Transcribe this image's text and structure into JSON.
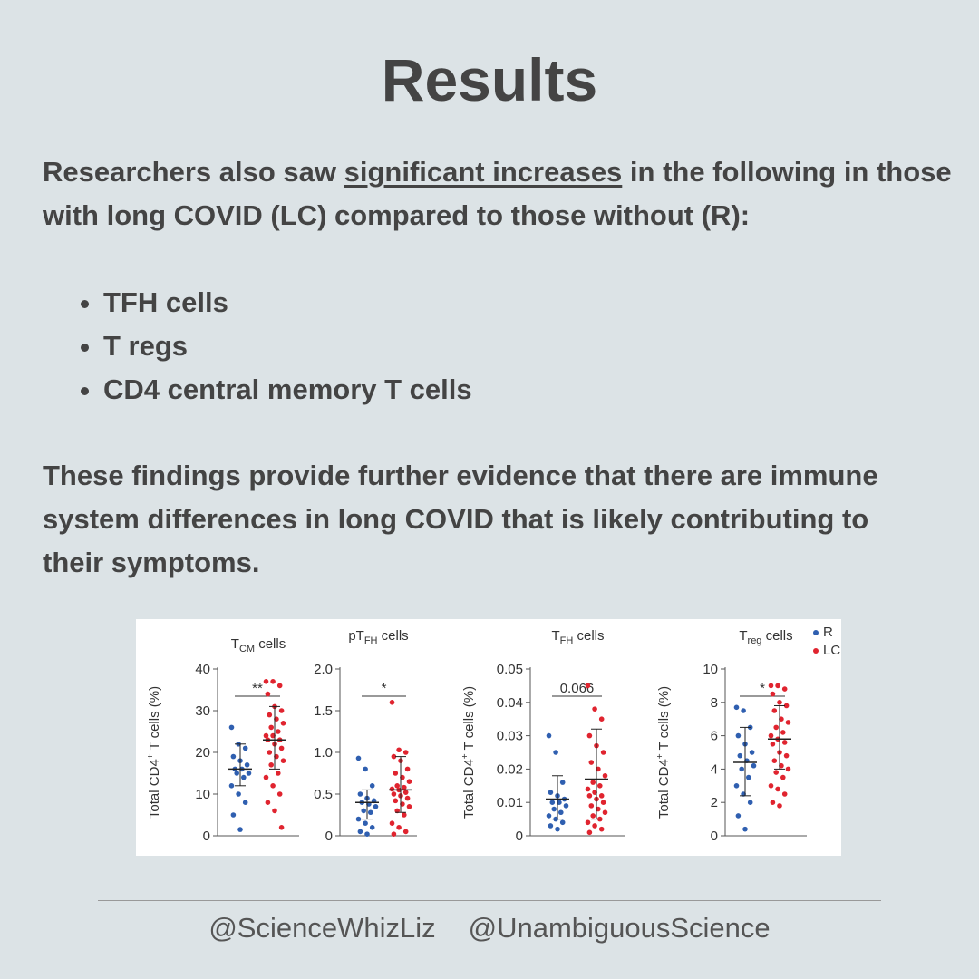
{
  "header": {
    "title": "Results"
  },
  "intro": {
    "before": "Researchers also saw ",
    "underlined": "significant increases",
    "after": " in the following in those with long COVID (LC) compared to those without (R):"
  },
  "bullets": [
    "TFH cells",
    "T regs",
    "CD4 central memory T cells"
  ],
  "conclusion": "These findings provide further evidence that there are immune system differences in long COVID that is likely contributing to their symptoms.",
  "chart_data": [
    {
      "type": "strip",
      "title": {
        "main": "T",
        "sub": "CM",
        "tail": " cells"
      },
      "ylabel": {
        "pre": "Total CD4",
        "sup": "+",
        "post": " T cells (%)"
      },
      "annotation": "**",
      "ylim": [
        0,
        40
      ],
      "yticks": [
        0,
        10,
        20,
        30,
        40
      ],
      "series": [
        {
          "name": "R",
          "color": "#2f5fb0",
          "values": [
            26,
            22,
            21,
            19,
            18,
            17,
            16,
            16,
            15,
            15,
            14,
            12,
            10,
            8,
            5,
            1.5
          ],
          "median": 16,
          "lower": 12,
          "upper": 22
        },
        {
          "name": "LC",
          "color": "#e0242f",
          "values": [
            37,
            37,
            36,
            34,
            31,
            30,
            29,
            28,
            27,
            26,
            25,
            24,
            24,
            23,
            23,
            22,
            21,
            20,
            19,
            18,
            17,
            15,
            14,
            12,
            10,
            8,
            6,
            2
          ],
          "median": 23,
          "lower": 16,
          "upper": 31
        }
      ]
    },
    {
      "type": "strip",
      "title": {
        "main": "pT",
        "sub": "FH",
        "tail": " cells"
      },
      "annotation": "*",
      "ylim": [
        0,
        2
      ],
      "yticks": [
        0,
        0.5,
        {
          "value": 1,
          "label": "1.0"
        },
        1.5,
        {
          "value": 2,
          "label": "2.0"
        }
      ],
      "series": [
        {
          "name": "R",
          "color": "#2f5fb0",
          "values": [
            0.93,
            0.8,
            0.6,
            0.5,
            0.45,
            0.42,
            0.4,
            0.38,
            0.35,
            0.3,
            0.28,
            0.2,
            0.15,
            0.1,
            0.05,
            0.02
          ],
          "median": 0.4,
          "lower": 0.2,
          "upper": 0.55
        },
        {
          "name": "LC",
          "color": "#e0242f",
          "values": [
            1.6,
            1.03,
            1.0,
            0.95,
            0.9,
            0.8,
            0.75,
            0.7,
            0.65,
            0.6,
            0.58,
            0.56,
            0.55,
            0.52,
            0.5,
            0.48,
            0.45,
            0.42,
            0.38,
            0.35,
            0.3,
            0.25,
            0.15,
            0.1,
            0.05,
            0.02
          ],
          "median": 0.55,
          "lower": 0.28,
          "upper": 0.95
        }
      ]
    },
    {
      "type": "strip",
      "title": {
        "main": "T",
        "sub": "FH",
        "tail": " cells"
      },
      "ylabel": {
        "pre": "Total CD4",
        "sup": "+",
        "post": " T cells (%)"
      },
      "annotation": "0.066",
      "ylim": [
        0,
        0.05
      ],
      "yticks": [
        0,
        0.01,
        0.02,
        0.03,
        0.04,
        0.05
      ],
      "series": [
        {
          "name": "R",
          "color": "#2f5fb0",
          "values": [
            0.03,
            0.025,
            0.016,
            0.013,
            0.012,
            0.011,
            0.01,
            0.01,
            0.009,
            0.008,
            0.007,
            0.006,
            0.005,
            0.004,
            0.003,
            0.002
          ],
          "median": 0.011,
          "lower": 0.005,
          "upper": 0.018
        },
        {
          "name": "LC",
          "color": "#e0242f",
          "values": [
            0.045,
            0.038,
            0.035,
            0.03,
            0.027,
            0.025,
            0.022,
            0.02,
            0.018,
            0.016,
            0.015,
            0.014,
            0.013,
            0.012,
            0.012,
            0.011,
            0.01,
            0.009,
            0.008,
            0.007,
            0.006,
            0.005,
            0.004,
            0.003,
            0.002,
            0.001
          ],
          "median": 0.017,
          "lower": 0.005,
          "upper": 0.032
        }
      ]
    },
    {
      "type": "strip",
      "title": {
        "main": "T",
        "sub": "reg",
        "tail": " cells"
      },
      "ylabel": {
        "pre": "Total CD4",
        "sup": "+",
        "post": " T cells (%)"
      },
      "annotation": "*",
      "ylim": [
        0,
        10
      ],
      "yticks": [
        0,
        2,
        4,
        6,
        8,
        10
      ],
      "legend": "top-right",
      "series": [
        {
          "name": "R",
          "color": "#2f5fb0",
          "values": [
            7.7,
            7.5,
            6.5,
            6,
            5.5,
            5,
            4.8,
            4.5,
            4.2,
            4,
            3.5,
            3,
            2.5,
            2,
            1.2,
            0.4
          ],
          "median": 4.4,
          "lower": 2.4,
          "upper": 6.5
        },
        {
          "name": "LC",
          "color": "#e0242f",
          "values": [
            9,
            9,
            8.8,
            8.5,
            8,
            7.8,
            7.5,
            7,
            6.8,
            6.5,
            6.2,
            6,
            5.8,
            5.6,
            5.5,
            5,
            4.8,
            4.5,
            4.2,
            4,
            3.8,
            3.5,
            3,
            2.8,
            2.5,
            2,
            1.8
          ],
          "median": 5.8,
          "lower": 4,
          "upper": 7.8
        }
      ]
    }
  ],
  "footer": {
    "handles": [
      "@ScienceWhizLiz",
      "@UnambiguousScience"
    ]
  }
}
